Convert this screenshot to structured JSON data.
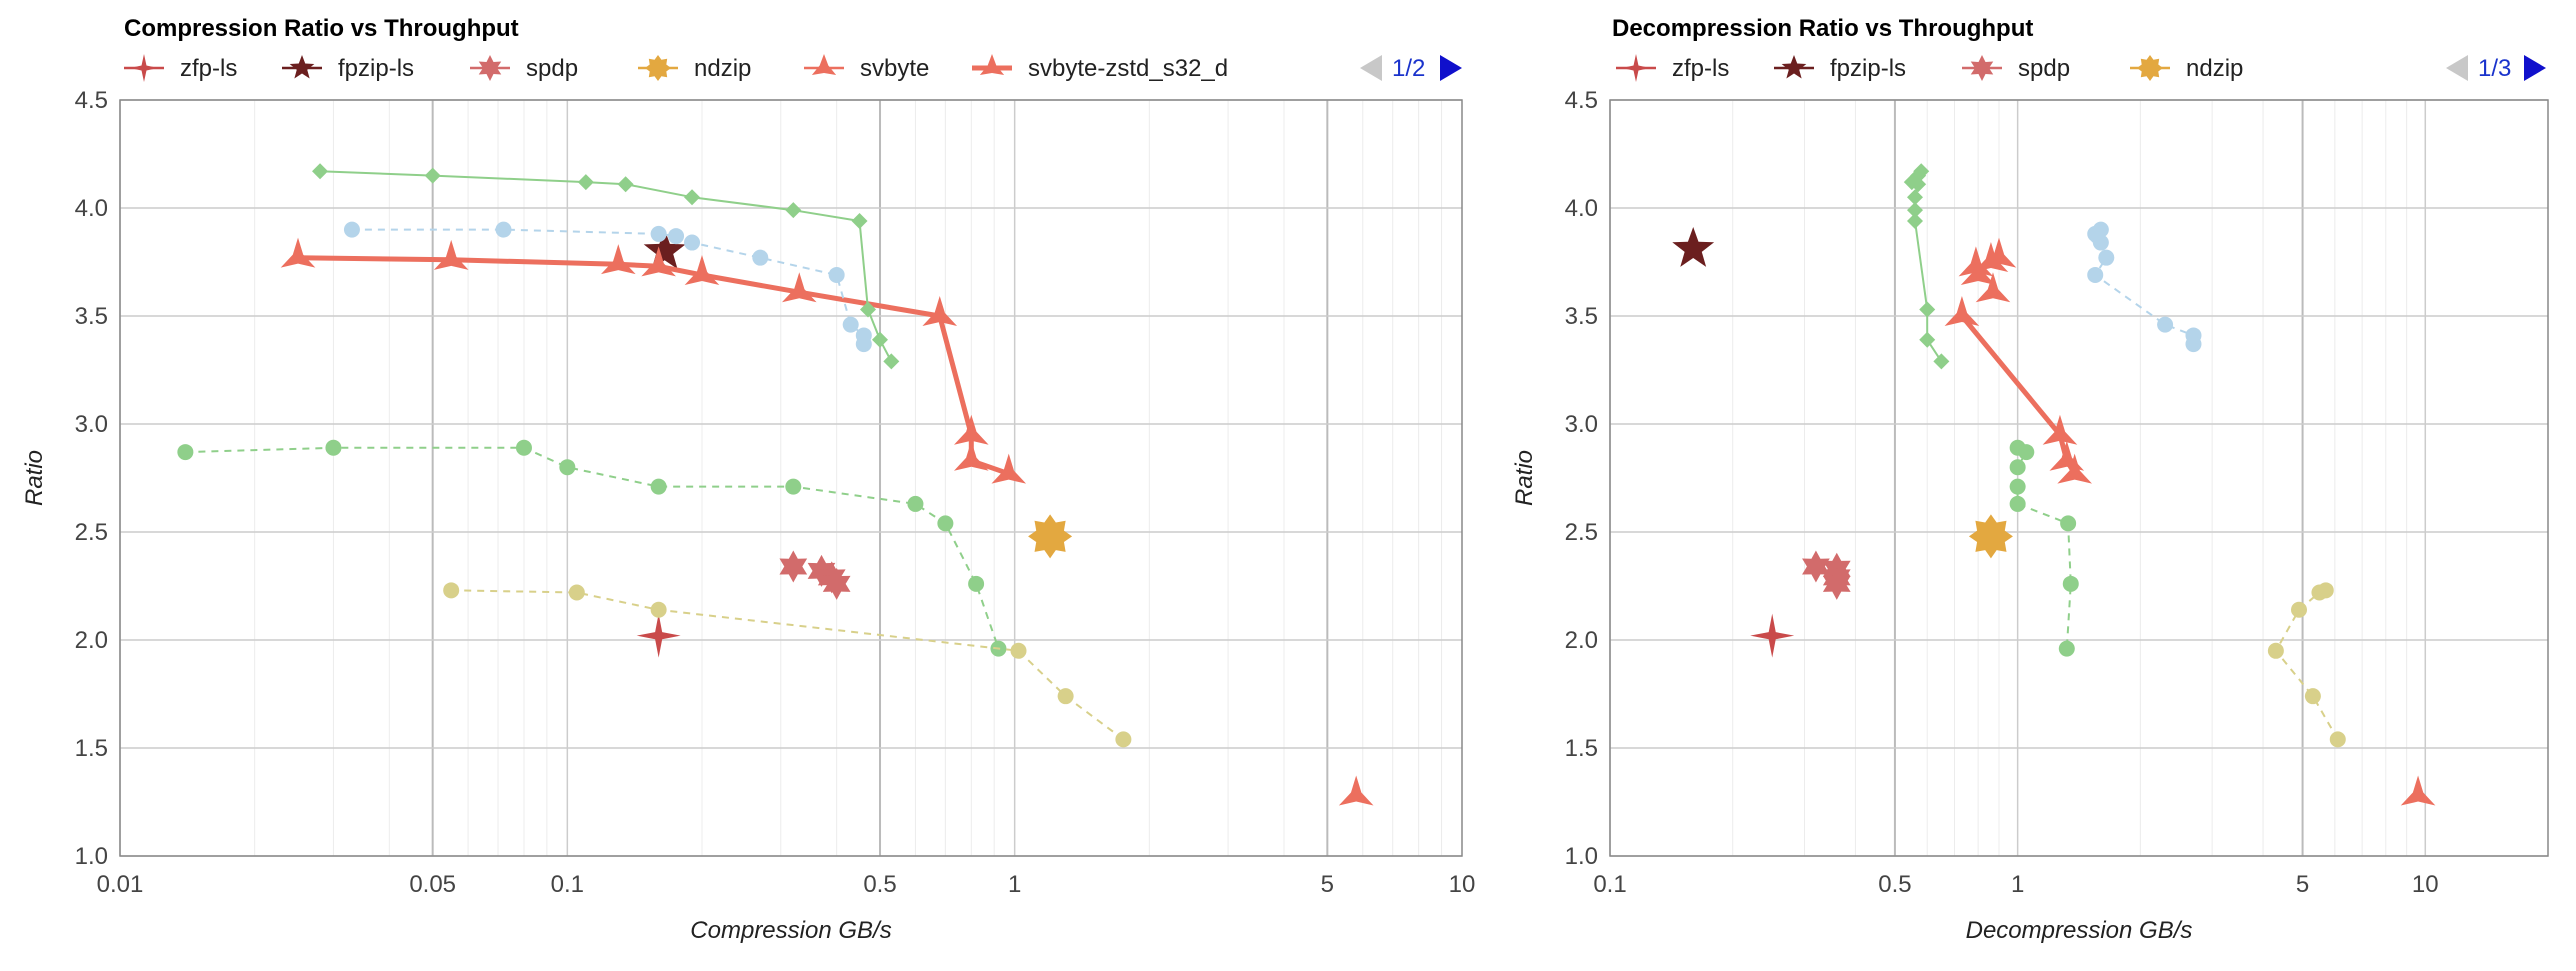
{
  "colors": {
    "zfp": "#c94a4a",
    "fpzip": "#6b1f1f",
    "spdp": "#d26b6b",
    "ndzip": "#e3a840",
    "svbyte": "#ec6f5e",
    "svbyte_zstd": "#ec6f5e",
    "green": "#8fcf8a",
    "blue": "#b4d4ea",
    "yellow": "#d8d08a"
  },
  "chart_data": [
    {
      "type": "scatter",
      "title": "Compression Ratio vs Throughput",
      "xlabel": "Compression GB/s",
      "ylabel": "Ratio",
      "x_scale": "log",
      "xlim": [
        0.01,
        10
      ],
      "ylim": [
        1.0,
        4.5
      ],
      "x_ticks": [
        "0.01",
        "0.05",
        "0.1",
        "0.5",
        "1",
        "5",
        "10"
      ],
      "y_ticks": [
        "1.0",
        "1.5",
        "2.0",
        "2.5",
        "3.0",
        "3.5",
        "4.0",
        "4.5"
      ],
      "grid": true,
      "legend_position": "top",
      "legend": [
        "zfp-ls",
        "fpzip-ls",
        "spdp",
        "ndzip",
        "svbyte",
        "svbyte-zstd_s32_d"
      ],
      "pager": "1/2",
      "series": [
        {
          "name": "zfp-ls",
          "marker": "star4",
          "color": "zfp",
          "points": [
            [
              0.16,
              2.02
            ]
          ]
        },
        {
          "name": "fpzip-ls",
          "marker": "star5",
          "color": "fpzip",
          "points": [
            [
              0.165,
              3.8
            ]
          ]
        },
        {
          "name": "spdp",
          "marker": "star6",
          "color": "spdp",
          "points": [
            [
              0.32,
              2.34
            ],
            [
              0.37,
              2.32
            ],
            [
              0.39,
              2.29
            ],
            [
              0.4,
              2.26
            ]
          ]
        },
        {
          "name": "ndzip",
          "marker": "star8",
          "color": "ndzip",
          "points": [
            [
              1.2,
              2.48
            ]
          ]
        },
        {
          "name": "svbyte",
          "marker": "star3",
          "color": "svbyte",
          "points": [
            [
              5.8,
              1.28
            ]
          ]
        },
        {
          "name": "svbyte-zstd_s32_d",
          "marker": "star3",
          "color": "svbyte_zstd",
          "line": "solid",
          "points": [
            [
              0.025,
              3.77
            ],
            [
              0.055,
              3.76
            ],
            [
              0.13,
              3.74
            ],
            [
              0.16,
              3.73
            ],
            [
              0.2,
              3.69
            ],
            [
              0.33,
              3.61
            ],
            [
              0.68,
              3.5
            ],
            [
              0.8,
              2.95
            ],
            [
              0.8,
              2.83
            ],
            [
              0.97,
              2.77
            ]
          ]
        },
        {
          "marker": "diamond",
          "color": "green",
          "line": "solid",
          "points": [
            [
              0.028,
              4.17
            ],
            [
              0.05,
              4.15
            ],
            [
              0.11,
              4.12
            ],
            [
              0.135,
              4.11
            ],
            [
              0.19,
              4.05
            ],
            [
              0.32,
              3.99
            ],
            [
              0.45,
              3.94
            ],
            [
              0.47,
              3.53
            ],
            [
              0.5,
              3.39
            ],
            [
              0.53,
              3.29
            ]
          ]
        },
        {
          "marker": "circle",
          "color": "blue",
          "line": "dashed",
          "points": [
            [
              0.033,
              3.9
            ],
            [
              0.072,
              3.9
            ],
            [
              0.16,
              3.88
            ],
            [
              0.175,
              3.87
            ],
            [
              0.19,
              3.84
            ],
            [
              0.27,
              3.77
            ],
            [
              0.4,
              3.69
            ],
            [
              0.43,
              3.46
            ],
            [
              0.46,
              3.41
            ],
            [
              0.46,
              3.37
            ]
          ]
        },
        {
          "marker": "circle",
          "color": "green",
          "line": "dashed",
          "points": [
            [
              0.014,
              2.87
            ],
            [
              0.03,
              2.89
            ],
            [
              0.08,
              2.89
            ],
            [
              0.1,
              2.8
            ],
            [
              0.16,
              2.71
            ],
            [
              0.32,
              2.71
            ],
            [
              0.6,
              2.63
            ],
            [
              0.7,
              2.54
            ],
            [
              0.82,
              2.26
            ],
            [
              0.92,
              1.96
            ]
          ]
        },
        {
          "marker": "circle",
          "color": "yellow",
          "line": "dashed",
          "points": [
            [
              0.055,
              2.23
            ],
            [
              0.105,
              2.22
            ],
            [
              0.16,
              2.14
            ],
            [
              1.02,
              1.95
            ],
            [
              1.3,
              1.74
            ],
            [
              1.75,
              1.54
            ]
          ]
        }
      ]
    },
    {
      "type": "scatter",
      "title": "Decompression Ratio vs Throughput",
      "xlabel": "Decompression GB/s",
      "ylabel": "Ratio",
      "x_scale": "log",
      "xlim": [
        0.1,
        20
      ],
      "ylim": [
        1.0,
        4.5
      ],
      "x_ticks": [
        "0.1",
        "0.5",
        "1",
        "5",
        "10"
      ],
      "y_ticks": [
        "1.0",
        "1.5",
        "2.0",
        "2.5",
        "3.0",
        "3.5",
        "4.0",
        "4.5"
      ],
      "grid": true,
      "legend_position": "top",
      "legend": [
        "zfp-ls",
        "fpzip-ls",
        "spdp",
        "ndzip"
      ],
      "pager": "1/3",
      "series": [
        {
          "name": "zfp-ls",
          "marker": "star4",
          "color": "zfp",
          "points": [
            [
              0.25,
              2.02
            ]
          ]
        },
        {
          "name": "fpzip-ls",
          "marker": "star5",
          "color": "fpzip",
          "points": [
            [
              0.16,
              3.81
            ]
          ]
        },
        {
          "name": "spdp",
          "marker": "star6",
          "color": "spdp",
          "points": [
            [
              0.32,
              2.34
            ],
            [
              0.36,
              2.33
            ],
            [
              0.36,
              2.29
            ],
            [
              0.36,
              2.26
            ]
          ]
        },
        {
          "name": "ndzip",
          "marker": "star8",
          "color": "ndzip",
          "points": [
            [
              0.86,
              2.48
            ]
          ]
        },
        {
          "name": "svbyte",
          "marker": "star3",
          "color": "svbyte",
          "points": [
            [
              9.6,
              1.28
            ]
          ]
        },
        {
          "name": "svbyte-zstd_s32_d",
          "marker": "star3",
          "color": "svbyte_zstd",
          "points": [
            [
              0.79,
              3.73
            ],
            [
              0.86,
              3.75
            ],
            [
              0.9,
              3.77
            ],
            [
              0.8,
              3.69
            ],
            [
              0.87,
              3.61
            ]
          ]
        },
        {
          "name": "svbyte-zstd_s32_d",
          "marker": "star3",
          "color": "svbyte_zstd",
          "line": "solid",
          "points": [
            [
              0.73,
              3.5
            ],
            [
              1.27,
              2.95
            ],
            [
              1.32,
              2.83
            ],
            [
              1.38,
              2.77
            ]
          ]
        },
        {
          "marker": "diamond",
          "color": "green",
          "line": "solid",
          "points": [
            [
              0.58,
              4.17
            ],
            [
              0.57,
              4.15
            ],
            [
              0.55,
              4.12
            ],
            [
              0.57,
              4.11
            ],
            [
              0.56,
              4.05
            ],
            [
              0.56,
              3.99
            ],
            [
              0.56,
              3.94
            ],
            [
              0.6,
              3.53
            ],
            [
              0.6,
              3.39
            ],
            [
              0.65,
              3.29
            ]
          ]
        },
        {
          "marker": "circle",
          "color": "blue",
          "line": "dashed",
          "points": [
            [
              1.6,
              3.9
            ],
            [
              1.55,
              3.88
            ],
            [
              1.57,
              3.87
            ],
            [
              1.6,
              3.84
            ],
            [
              1.65,
              3.77
            ],
            [
              1.55,
              3.69
            ],
            [
              2.3,
              3.46
            ],
            [
              2.7,
              3.41
            ],
            [
              2.7,
              3.37
            ]
          ]
        },
        {
          "marker": "circle",
          "color": "green",
          "line": "dashed",
          "points": [
            [
              1.0,
              2.89
            ],
            [
              1.05,
              2.87
            ],
            [
              1.0,
              2.8
            ],
            [
              1.0,
              2.71
            ],
            [
              1.0,
              2.63
            ],
            [
              1.33,
              2.54
            ],
            [
              1.35,
              2.26
            ],
            [
              1.32,
              1.96
            ]
          ]
        },
        {
          "marker": "circle",
          "color": "yellow",
          "line": "dashed",
          "points": [
            [
              5.7,
              2.23
            ],
            [
              5.5,
              2.22
            ],
            [
              4.9,
              2.14
            ],
            [
              4.3,
              1.95
            ],
            [
              5.3,
              1.74
            ],
            [
              6.1,
              1.54
            ]
          ]
        }
      ]
    }
  ]
}
